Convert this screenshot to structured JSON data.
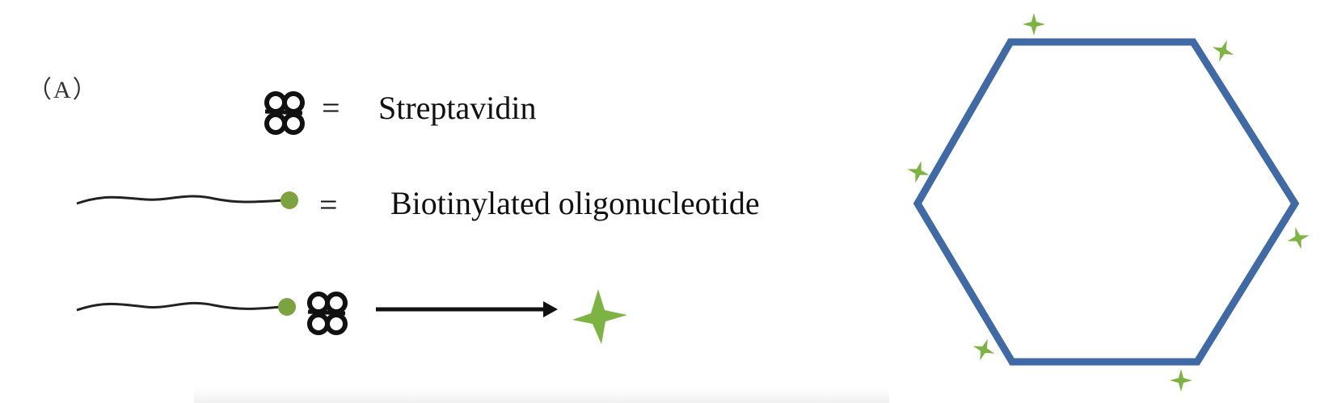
{
  "panel_label": "（A）",
  "legend": {
    "items": [
      {
        "symbol": "streptavidin-icon",
        "equals": "=",
        "text": "Streptavidin"
      },
      {
        "symbol": "biotinylated-oligo-icon",
        "equals": "=",
        "text": "Biotinylated oligonucleotide"
      }
    ]
  },
  "colors": {
    "hexagon": "#3f6aa5",
    "star": "#7cb342",
    "biotin": "#7ca33f",
    "strand": "#222222",
    "text": "#111111"
  }
}
